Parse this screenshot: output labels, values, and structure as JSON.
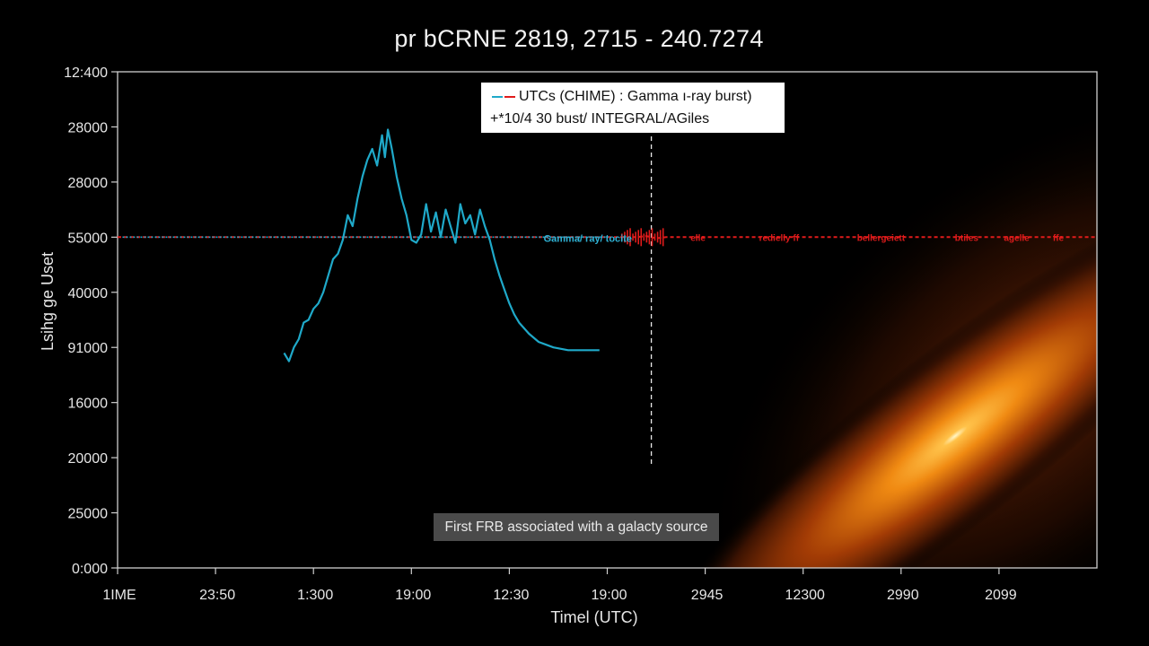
{
  "chart_data": {
    "type": "line",
    "title": "pr bCRNE 2819, 2715 - 240.7274",
    "xlabel": "Timel (UTC)",
    "ylabel": "Lsihg ge Uset",
    "x_tick_labels": [
      "1IME",
      "23:50",
      "1:300",
      "19:00",
      "12:30",
      "19:00",
      "2945",
      "12300",
      "2990",
      "2099"
    ],
    "y_tick_labels": [
      "12:400",
      "28000",
      "28000",
      "55000",
      "40000",
      "91000",
      "16000",
      "20000",
      "25000",
      "0:000"
    ],
    "legend": {
      "placement": "top-center",
      "entries": [
        "UTCs (CHIME) : Gamma ı-ray burst)",
        "+*10/4 30 bust/ INTEGRAL/AGiles"
      ]
    },
    "inline_labels": {
      "gamma": "Gamma/ ray/ tocite",
      "red_fragments": [
        "elle",
        "redielly ff",
        "bellergeiett",
        "btiles",
        "agelle",
        "ffe"
      ]
    },
    "annotation": "First FRB associated with a galacty source",
    "series": [
      {
        "name": "UTCs (CHIME)",
        "color": "#1fa9c9",
        "style": "solid",
        "points": [
          [
            1.7,
            5.1
          ],
          [
            1.75,
            5.25
          ],
          [
            1.8,
            5.0
          ],
          [
            1.85,
            4.85
          ],
          [
            1.9,
            4.55
          ],
          [
            1.95,
            4.5
          ],
          [
            2.0,
            4.3
          ],
          [
            2.05,
            4.2
          ],
          [
            2.1,
            4.0
          ],
          [
            2.15,
            3.7
          ],
          [
            2.2,
            3.4
          ],
          [
            2.25,
            3.3
          ],
          [
            2.3,
            3.05
          ],
          [
            2.35,
            2.6
          ],
          [
            2.4,
            2.8
          ],
          [
            2.45,
            2.3
          ],
          [
            2.5,
            1.9
          ],
          [
            2.55,
            1.6
          ],
          [
            2.6,
            1.4
          ],
          [
            2.65,
            1.7
          ],
          [
            2.7,
            1.15
          ],
          [
            2.73,
            1.55
          ],
          [
            2.76,
            1.05
          ],
          [
            2.8,
            1.4
          ],
          [
            2.85,
            1.9
          ],
          [
            2.9,
            2.3
          ],
          [
            2.95,
            2.6
          ],
          [
            3.0,
            3.05
          ],
          [
            3.05,
            3.1
          ],
          [
            3.1,
            2.95
          ],
          [
            3.15,
            2.4
          ],
          [
            3.2,
            2.9
          ],
          [
            3.25,
            2.55
          ],
          [
            3.3,
            3.0
          ],
          [
            3.35,
            2.5
          ],
          [
            3.4,
            2.8
          ],
          [
            3.45,
            3.1
          ],
          [
            3.5,
            2.4
          ],
          [
            3.55,
            2.75
          ],
          [
            3.6,
            2.6
          ],
          [
            3.65,
            2.95
          ],
          [
            3.7,
            2.5
          ],
          [
            3.75,
            2.8
          ],
          [
            3.8,
            3.05
          ],
          [
            3.85,
            3.4
          ],
          [
            3.9,
            3.7
          ],
          [
            3.95,
            3.95
          ],
          [
            4.0,
            4.2
          ],
          [
            4.05,
            4.4
          ],
          [
            4.1,
            4.55
          ],
          [
            4.2,
            4.75
          ],
          [
            4.3,
            4.9
          ],
          [
            4.45,
            5.0
          ],
          [
            4.6,
            5.05
          ],
          [
            4.8,
            5.05
          ],
          [
            4.92,
            5.05
          ]
        ]
      },
      {
        "name": "Gamma-ray burst",
        "color": "#e01b1b",
        "style": "dashed",
        "points": [
          [
            0.0,
            3.0
          ],
          [
            1.0,
            3.0
          ],
          [
            2.0,
            3.0
          ],
          [
            3.0,
            3.0
          ],
          [
            4.0,
            3.0
          ],
          [
            5.0,
            3.0
          ],
          [
            5.3,
            3.0
          ],
          [
            5.4,
            2.98
          ],
          [
            5.5,
            3.02
          ],
          [
            5.6,
            3.0
          ],
          [
            6.0,
            3.0
          ],
          [
            7.0,
            3.0
          ],
          [
            8.0,
            3.0
          ],
          [
            9.0,
            3.0
          ],
          [
            10.0,
            3.0
          ]
        ]
      }
    ],
    "vertical_marker": {
      "x": 5.45,
      "color": "#e8e8e8",
      "style": "dashed"
    },
    "grid": false
  }
}
